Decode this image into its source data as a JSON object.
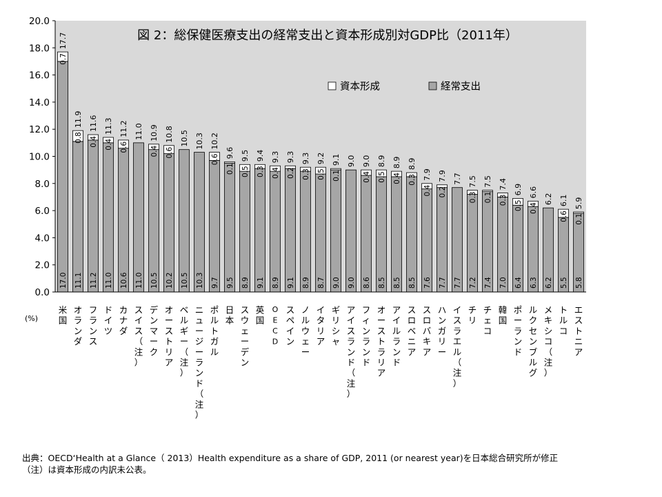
{
  "chart_data": {
    "type": "bar",
    "title": "図 2：総保健医療支出の経常支出と資本形成別対GDP比（2011年）",
    "xlabel": "",
    "ylabel": "",
    "unit": "(%)",
    "ylim": [
      0,
      20
    ],
    "yticks": [
      "0.0",
      "2.0",
      "4.0",
      "6.0",
      "8.0",
      "10.0",
      "12.0",
      "14.0",
      "16.0",
      "18.0",
      "20.0"
    ],
    "grid": false,
    "background": "#d9d9d9",
    "legend_position": "top-right",
    "stacked": true,
    "categories": [
      "米国",
      "オランダ",
      "フランス",
      "ドイツ",
      "カナダ",
      "スイス（注）",
      "デンマーク",
      "オーストリア",
      "ベルギー（注）",
      "ニュージーランド（注）",
      "ポルトガル",
      "日本",
      "スウェーデン",
      "英国",
      "OECD",
      "スペイン",
      "ノルウェー",
      "イタリア",
      "ギリシャ",
      "アイスランド（注）",
      "フィンランド",
      "オーストラリア",
      "アイルランド",
      "スロベニア",
      "スロバキア",
      "ハンガリー",
      "イスラエル（注）",
      "チリ",
      "チェコ",
      "韓国",
      "ポーランド",
      "ルクセンブルグ",
      "メキシコ（注）",
      "トルコ",
      "エストニア"
    ],
    "series": [
      {
        "name": "経常支出",
        "color": "#a6a6a6",
        "labels": [
          "17.0",
          "11.1",
          "11.2",
          "11.0",
          "10.6",
          "11.0",
          "10.5",
          "10.2",
          "10.5",
          "10.3",
          "9.7",
          "9.5",
          "8.9",
          "9.1",
          "8.9",
          "9.1",
          "8.9",
          "8.7",
          "9.0",
          "9.0",
          "8.6",
          "8.5",
          "8.5",
          "8.5",
          "7.6",
          "7.7",
          "7.7",
          "7.2",
          "7.4",
          "7.0",
          "6.4",
          "6.3",
          "6.2",
          "5.5",
          "5.8"
        ],
        "values": [
          17.0,
          11.1,
          11.2,
          11.0,
          10.6,
          11.0,
          10.5,
          10.2,
          10.5,
          10.3,
          9.7,
          9.5,
          8.9,
          9.1,
          8.9,
          9.1,
          8.9,
          8.7,
          9.0,
          9.0,
          8.6,
          8.5,
          8.5,
          8.5,
          7.6,
          7.7,
          7.7,
          7.2,
          7.4,
          7.0,
          6.4,
          6.3,
          6.2,
          5.5,
          5.8
        ]
      },
      {
        "name": "資本形成",
        "color": "#ffffff",
        "labels": [
          "0.7",
          "0.8",
          "0.4",
          "0.4",
          "0.6",
          "",
          "0.4",
          "0.6",
          "",
          "",
          "0.6",
          "0.1",
          "0.5",
          "0.3",
          "0.4",
          "0.2",
          "0.3",
          "0.5",
          "0.1",
          "",
          "0.4",
          "0.5",
          "0.4",
          "0.3",
          "0.4",
          "0.2",
          "",
          "0.3",
          "0.1",
          "0.3",
          "0.5",
          "0.4",
          "",
          "0.6",
          "0.1"
        ],
        "values": [
          0.7,
          0.8,
          0.4,
          0.4,
          0.6,
          0,
          0.4,
          0.6,
          0,
          0,
          0.6,
          0.1,
          0.5,
          0.3,
          0.4,
          0.2,
          0.3,
          0.5,
          0.1,
          0,
          0.4,
          0.5,
          0.4,
          0.3,
          0.4,
          0.2,
          0,
          0.3,
          0.1,
          0.3,
          0.5,
          0.4,
          0,
          0.6,
          0.1
        ]
      }
    ],
    "totals": [
      "17.7",
      "11.9",
      "11.6",
      "11.3",
      "11.2",
      "11.0",
      "10.9",
      "10.8",
      "10.5",
      "10.3",
      "10.2",
      "9.6",
      "9.5",
      "9.4",
      "9.3",
      "9.3",
      "9.3",
      "9.2",
      "9.1",
      "9.0",
      "9.0",
      "8.9",
      "8.9",
      "8.9",
      "7.9",
      "7.9",
      "7.7",
      "7.5",
      "7.5",
      "7.4",
      "6.9",
      "6.6",
      "6.2",
      "6.1",
      "5.9"
    ]
  },
  "source": {
    "line1": "出典：OECD‘Health at a Glance（ 2013）Health expenditure as a share of GDP, 2011 (or nearest year)を日本総合研究所が修正",
    "line2": "（注）は資本形成の内訳未公表。"
  }
}
